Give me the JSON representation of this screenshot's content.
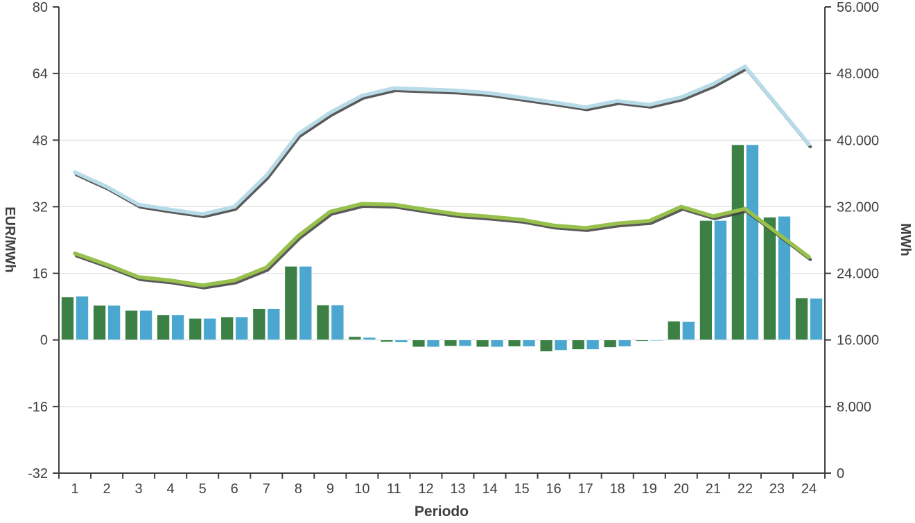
{
  "chart_data": {
    "type": "bar+line combo",
    "title": "",
    "xlabel": "Periodo",
    "x": {
      "categories": [
        "1",
        "2",
        "3",
        "4",
        "5",
        "6",
        "7",
        "8",
        "9",
        "10",
        "11",
        "12",
        "13",
        "14",
        "15",
        "16",
        "17",
        "18",
        "19",
        "20",
        "21",
        "22",
        "23",
        "24"
      ]
    },
    "left_axis": {
      "label": "EUR/MWh",
      "min": -32,
      "max": 80,
      "tick_step": 16,
      "ticks": [
        80,
        64,
        48,
        32,
        16,
        0,
        -16,
        -32
      ],
      "tick_labels": [
        "80",
        "64",
        "48",
        "32",
        "16",
        "0",
        "-16",
        "-32"
      ],
      "gridlines": [
        64,
        48,
        32,
        16,
        0,
        -16
      ]
    },
    "right_axis": {
      "label": "MWh",
      "min": 0,
      "max": 56000,
      "tick_step": 8000,
      "tick_labels": [
        "56.000",
        "48.000",
        "40.000",
        "32.000",
        "24.000",
        "16.000",
        "8.000",
        "0"
      ],
      "note": "right axis value = (left axis value + 32) * 500; bars plotted from left-axis 0 (= 16.000 MWh)"
    },
    "bar_series": [
      {
        "name": "green-bars",
        "color": "#3d8045",
        "values_left_axis_units": [
          10.3,
          8.3,
          7.1,
          6.0,
          5.2,
          5.5,
          7.5,
          17.7,
          8.4,
          0.8,
          -0.5,
          -1.7,
          -1.5,
          -1.7,
          -1.6,
          -2.8,
          -2.3,
          -1.8,
          -0.3,
          4.5,
          28.7,
          46.9,
          29.5,
          10.1
        ]
      },
      {
        "name": "blue-bars",
        "color": "#4ba7cf",
        "values_left_axis_units": [
          10.5,
          8.3,
          7.1,
          6.0,
          5.2,
          5.5,
          7.5,
          17.7,
          8.4,
          0.6,
          -0.6,
          -1.7,
          -1.5,
          -1.7,
          -1.6,
          -2.5,
          -2.3,
          -1.6,
          -0.2,
          4.4,
          28.7,
          46.9,
          29.7,
          10.0
        ]
      }
    ],
    "line_series": [
      {
        "name": "light-blue-line",
        "color": "#b8dbe8",
        "values_eur_mwh": [
          40.3,
          36.8,
          32.5,
          31.3,
          30.2,
          32.0,
          39.5,
          49.5,
          54.6,
          58.7,
          60.5,
          60.2,
          59.9,
          59.3,
          58.2,
          57.1,
          55.9,
          57.4,
          56.5,
          58.3,
          61.5,
          65.7,
          56.4,
          47.0
        ]
      },
      {
        "name": "green-line",
        "color": "#97c04c",
        "values_eur_mwh": [
          20.8,
          18.1,
          15.1,
          14.3,
          13.1,
          14.3,
          17.4,
          25.0,
          30.8,
          32.7,
          32.5,
          31.3,
          30.2,
          29.6,
          28.9,
          27.5,
          26.9,
          28.0,
          28.6,
          32.0,
          29.7,
          31.5,
          25.7,
          19.9
        ]
      }
    ],
    "legend": "none",
    "grid": "horizontal-only",
    "colors": {
      "bar_green": "#3d8045",
      "bar_blue": "#4ba7cf",
      "line_blue": "#b8dbe8",
      "line_green": "#97c04c",
      "line_shadow": "#3d3d3d",
      "grid": "#d9d9d9",
      "axis": "#404040",
      "text": "#404040",
      "background": "#ffffff"
    }
  },
  "labels": {
    "left_axis_title": "EUR/MWh",
    "right_axis_title": "MWh",
    "x_axis_title": "Periodo"
  }
}
